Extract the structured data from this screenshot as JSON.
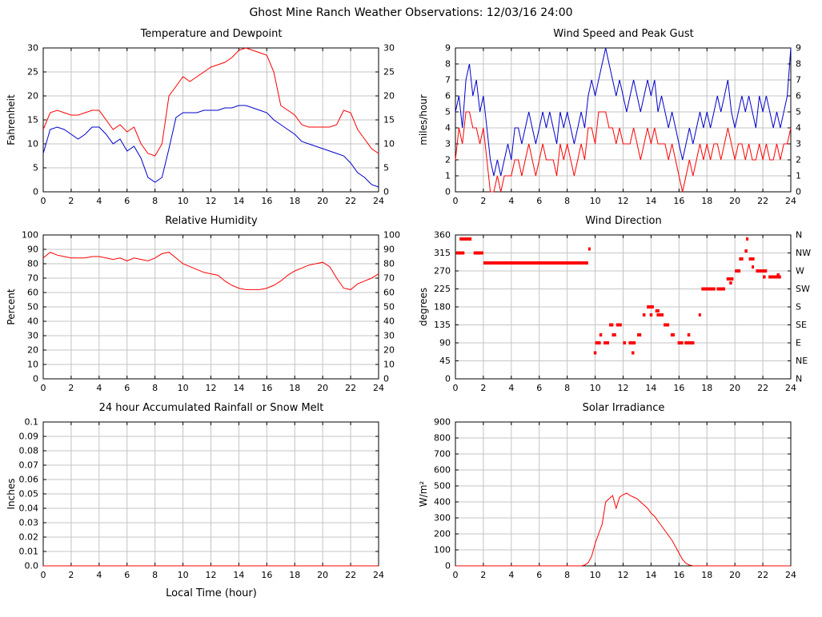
{
  "page_title": "Ghost Mine Ranch Weather Observations: 12/03/16 24:00",
  "style": {
    "red": "#ff0000",
    "blue": "#0000cc",
    "grid_color": "#c4c4c4",
    "axis_color": "#000000",
    "background": "#ffffff"
  },
  "x_axis": {
    "label": "Local Time (hour)",
    "min": 0,
    "max": 24,
    "ticks": [
      0,
      2,
      4,
      6,
      8,
      10,
      12,
      14,
      16,
      18,
      20,
      22,
      24
    ]
  },
  "chart_data": [
    {
      "type": "line",
      "title": "Temperature and Dewpoint",
      "ylabel": "Fahrenheit",
      "ylim": [
        0,
        30
      ],
      "ytick_values": [
        0,
        5,
        10,
        15,
        20,
        25,
        30
      ],
      "ytick_labels": [
        "0",
        "5",
        "10",
        "15",
        "20",
        "25",
        "30"
      ],
      "right_labels": true,
      "x_step": 0.5,
      "series": [
        {
          "name": "Temperature",
          "key": "temperature-line",
          "color": "red",
          "values": [
            13,
            16.5,
            17,
            16.5,
            16,
            16,
            16.5,
            17,
            17,
            15,
            13,
            14,
            12.5,
            13.5,
            10,
            8,
            7.5,
            10,
            20,
            22,
            24,
            23,
            24,
            25,
            26,
            26.5,
            27,
            28,
            29.5,
            30,
            29.5,
            29,
            28.5,
            25,
            18,
            17,
            16,
            14,
            13.5,
            13.5,
            13.5,
            13.5,
            14,
            17,
            16.5,
            13,
            11,
            9,
            8
          ]
        },
        {
          "name": "Dewpoint",
          "key": "dewpoint-line",
          "color": "blue",
          "values": [
            8,
            13,
            13.5,
            13,
            12,
            11,
            12,
            13.5,
            13.5,
            12,
            10,
            11,
            8.5,
            9.5,
            7,
            3,
            2,
            3,
            9,
            15.5,
            16.5,
            16.5,
            16.5,
            17,
            17,
            17,
            17.5,
            17.5,
            18,
            18,
            17.5,
            17,
            16.5,
            15,
            14,
            13,
            12,
            10.5,
            10,
            9.5,
            9,
            8.5,
            8,
            7.5,
            6,
            4,
            3,
            1.5,
            1
          ]
        }
      ]
    },
    {
      "type": "line",
      "title": "Wind Speed and Peak Gust",
      "ylabel": "miles/hour",
      "ylim": [
        0,
        9
      ],
      "ytick_values": [
        0,
        1,
        2,
        3,
        4,
        5,
        6,
        7,
        8,
        9
      ],
      "ytick_labels": [
        "0",
        "1",
        "2",
        "3",
        "4",
        "5",
        "6",
        "7",
        "8",
        "9"
      ],
      "right_labels": true,
      "x_step": 0.25,
      "series": [
        {
          "name": "Peak Gust",
          "key": "peak-gust-line",
          "color": "blue",
          "values": [
            5,
            6,
            4,
            7,
            8,
            6,
            7,
            5,
            6,
            4,
            2,
            1,
            2,
            1,
            2,
            3,
            2,
            4,
            4,
            3,
            4,
            5,
            4,
            3,
            4,
            5,
            4,
            5,
            4,
            3,
            5,
            4,
            5,
            4,
            3,
            4,
            5,
            4,
            6,
            7,
            6,
            7,
            8,
            9,
            8,
            7,
            6,
            7,
            6,
            5,
            6,
            7,
            6,
            5,
            6,
            7,
            6,
            7,
            5,
            6,
            5,
            4,
            5,
            4,
            3,
            2,
            3,
            4,
            3,
            4,
            5,
            4,
            5,
            4,
            5,
            6,
            5,
            6,
            7,
            5,
            4,
            5,
            6,
            5,
            6,
            5,
            4,
            6,
            5,
            6,
            5,
            4,
            5,
            4,
            5,
            6,
            9
          ]
        },
        {
          "name": "Wind Speed",
          "key": "wind-speed-line",
          "color": "red",
          "values": [
            2,
            4,
            3,
            5,
            5,
            4,
            4,
            3,
            4,
            2,
            0,
            0,
            1,
            0,
            1,
            1,
            1,
            2,
            2,
            1,
            2,
            3,
            2,
            1,
            2,
            3,
            2,
            2,
            2,
            1,
            3,
            2,
            3,
            2,
            1,
            2,
            3,
            2,
            4,
            4,
            3,
            5,
            5,
            5,
            4,
            4,
            3,
            4,
            3,
            3,
            3,
            4,
            3,
            2,
            3,
            4,
            3,
            4,
            3,
            3,
            3,
            2,
            3,
            2,
            1,
            0,
            1,
            2,
            1,
            2,
            3,
            2,
            3,
            2,
            3,
            3,
            2,
            3,
            4,
            3,
            2,
            3,
            3,
            2,
            3,
            2,
            2,
            3,
            2,
            3,
            2,
            2,
            3,
            2,
            3,
            3,
            4
          ]
        }
      ]
    },
    {
      "type": "line",
      "title": "Relative Humidity",
      "ylabel": "Percent",
      "ylim": [
        0,
        100
      ],
      "ytick_values": [
        0,
        10,
        20,
        30,
        40,
        50,
        60,
        70,
        80,
        90,
        100
      ],
      "ytick_labels": [
        "0",
        "10",
        "20",
        "30",
        "40",
        "50",
        "60",
        "70",
        "80",
        "90",
        "100"
      ],
      "right_labels": true,
      "x_step": 0.5,
      "series": [
        {
          "name": "Relative Humidity",
          "key": "humidity-line",
          "color": "red",
          "values": [
            84,
            88,
            86,
            85,
            84,
            84,
            84,
            85,
            85,
            84,
            83,
            84,
            82,
            84,
            83,
            82,
            84,
            87,
            88,
            84,
            80,
            78,
            76,
            74,
            73,
            72,
            68,
            65,
            63,
            62,
            62,
            62,
            63,
            65,
            68,
            72,
            75,
            77,
            79,
            80,
            81,
            78,
            70,
            63,
            62,
            66,
            68,
            70,
            73
          ]
        }
      ]
    },
    {
      "type": "scatter",
      "title": "Wind Direction",
      "ylabel": "degrees",
      "ylim": [
        0,
        360
      ],
      "ytick_values": [
        0,
        45,
        90,
        135,
        180,
        225,
        270,
        315,
        360
      ],
      "ytick_labels": [
        "0",
        "45",
        "90",
        "135",
        "180",
        "225",
        "270",
        "315",
        "360"
      ],
      "right_tick_labels": [
        "N",
        "NE",
        "E",
        "SE",
        "S",
        "SW",
        "W",
        "NW",
        "N"
      ],
      "segments": [
        [
          0.05,
          0.65,
          315
        ],
        [
          0.3,
          1.15,
          350
        ],
        [
          1.3,
          2.0,
          315
        ],
        [
          2.0,
          9.5,
          290
        ],
        [
          9.5,
          9.65,
          325
        ],
        [
          9.9,
          10.1,
          65
        ],
        [
          10.0,
          10.4,
          90
        ],
        [
          10.3,
          10.5,
          110
        ],
        [
          10.6,
          11.0,
          90
        ],
        [
          11.0,
          11.3,
          135
        ],
        [
          11.2,
          11.5,
          110
        ],
        [
          11.5,
          11.9,
          135
        ],
        [
          12.0,
          12.2,
          90
        ],
        [
          12.4,
          12.9,
          90
        ],
        [
          12.6,
          12.8,
          65
        ],
        [
          13.0,
          13.3,
          110
        ],
        [
          13.4,
          13.6,
          160
        ],
        [
          13.7,
          14.2,
          180
        ],
        [
          13.9,
          14.1,
          160
        ],
        [
          14.3,
          14.6,
          170
        ],
        [
          14.4,
          14.9,
          160
        ],
        [
          14.9,
          15.3,
          135
        ],
        [
          15.4,
          15.7,
          110
        ],
        [
          15.9,
          16.3,
          90
        ],
        [
          16.4,
          17.1,
          90
        ],
        [
          16.6,
          16.8,
          110
        ],
        [
          17.4,
          17.5,
          160
        ],
        [
          17.6,
          18.6,
          225
        ],
        [
          18.7,
          19.3,
          225
        ],
        [
          19.4,
          19.9,
          250
        ],
        [
          19.6,
          19.8,
          240
        ],
        [
          20.0,
          20.4,
          270
        ],
        [
          20.3,
          20.6,
          300
        ],
        [
          20.7,
          20.9,
          320
        ],
        [
          20.8,
          20.9,
          350
        ],
        [
          21.0,
          21.4,
          300
        ],
        [
          21.2,
          21.3,
          280
        ],
        [
          21.5,
          22.3,
          270
        ],
        [
          22.0,
          22.2,
          255
        ],
        [
          22.4,
          23.3,
          255
        ],
        [
          23.0,
          23.2,
          260
        ]
      ]
    },
    {
      "type": "line",
      "title": "24 hour Accumulated Rainfall or Snow Melt",
      "ylabel": "Inches",
      "xlabel": "Local Time (hour)",
      "ylim": [
        0,
        0.1
      ],
      "ytick_values": [
        0,
        0.01,
        0.02,
        0.03,
        0.04,
        0.05,
        0.06,
        0.07,
        0.08,
        0.09,
        0.1
      ],
      "ytick_labels": [
        "0.0",
        "0.01",
        "0.02",
        "0.03",
        "0.04",
        "0.05",
        "0.06",
        "0.07",
        "0.08",
        "0.09",
        "0.1"
      ],
      "right_labels": false,
      "x_step": 12,
      "series": [
        {
          "name": "Rainfall",
          "key": "rainfall-line",
          "color": "red",
          "values": [
            0,
            0,
            0
          ]
        }
      ]
    },
    {
      "type": "line",
      "title": "Solar Irradiance",
      "ylabel": "W/m²",
      "ylim": [
        0,
        900
      ],
      "ytick_values": [
        0,
        100,
        200,
        300,
        400,
        500,
        600,
        700,
        800,
        900
      ],
      "ytick_labels": [
        "0",
        "100",
        "200",
        "300",
        "400",
        "500",
        "600",
        "700",
        "800",
        "900"
      ],
      "right_labels": false,
      "x_step": 0.25,
      "series": [
        {
          "name": "Solar Irradiance",
          "key": "solar-line",
          "color": "red",
          "values": [
            0,
            0,
            0,
            0,
            0,
            0,
            0,
            0,
            0,
            0,
            0,
            0,
            0,
            0,
            0,
            0,
            0,
            0,
            0,
            0,
            0,
            0,
            0,
            0,
            0,
            0,
            0,
            0,
            0,
            0,
            0,
            0,
            0,
            0,
            0,
            0,
            0,
            5,
            20,
            60,
            140,
            200,
            260,
            400,
            420,
            440,
            360,
            430,
            445,
            455,
            440,
            430,
            420,
            400,
            380,
            360,
            330,
            310,
            280,
            250,
            220,
            190,
            160,
            120,
            80,
            40,
            15,
            5,
            0,
            0,
            0,
            0,
            0,
            0,
            0,
            0,
            0,
            0,
            0,
            0,
            0,
            0,
            0,
            0,
            0,
            0,
            0,
            0,
            0,
            0,
            0,
            0,
            0,
            0,
            0,
            0,
            0
          ]
        }
      ]
    }
  ]
}
